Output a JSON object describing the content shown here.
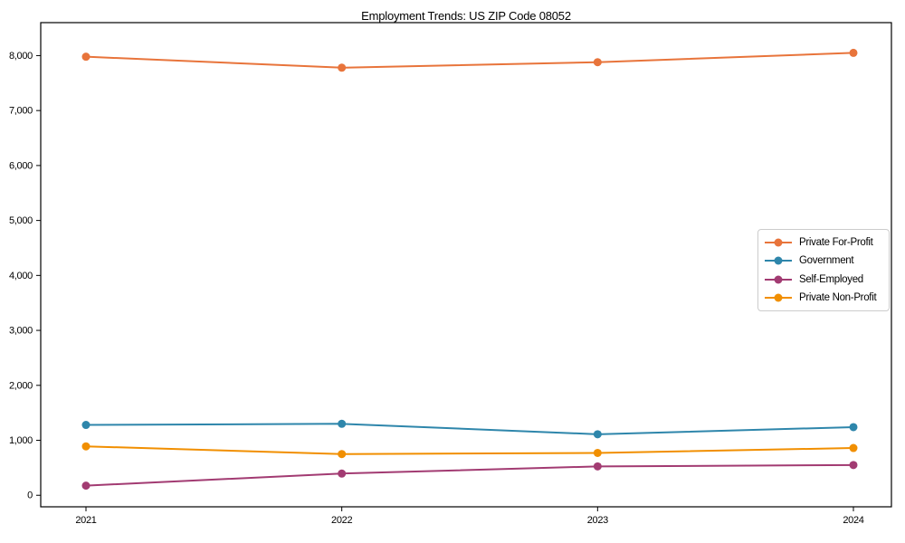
{
  "chart_data": {
    "type": "line",
    "title": "Employment Trends: US ZIP Code 08052",
    "xlabel": "",
    "ylabel": "",
    "x": [
      2021,
      2022,
      2023,
      2024
    ],
    "xtick_labels": [
      "2021",
      "2022",
      "2023",
      "2024"
    ],
    "yticks": [
      0,
      1000,
      2000,
      3000,
      4000,
      5000,
      6000,
      7000,
      8000
    ],
    "ytick_labels": [
      "0",
      "1,000",
      "2,000",
      "3,000",
      "4,000",
      "5,000",
      "6,000",
      "7,000",
      "8,000"
    ],
    "ylim": [
      -210,
      8600
    ],
    "grid": false,
    "marker": "circle",
    "legend_position": "center-right",
    "frame": true,
    "series": [
      {
        "name": "Private For-Profit",
        "color": "#E8743B",
        "values": [
          7980,
          7780,
          7880,
          8050
        ]
      },
      {
        "name": "Government",
        "color": "#2E86AB",
        "values": [
          1280,
          1300,
          1110,
          1240
        ]
      },
      {
        "name": "Self-Employed",
        "color": "#A23B72",
        "values": [
          175,
          395,
          525,
          550
        ]
      },
      {
        "name": "Private Non-Profit",
        "color": "#F18F01",
        "values": [
          890,
          750,
          770,
          860
        ]
      }
    ],
    "colors": {
      "axis": "#000000",
      "tick_text": "#000000",
      "legend_border": "#cccccc",
      "background": "#ffffff"
    }
  }
}
